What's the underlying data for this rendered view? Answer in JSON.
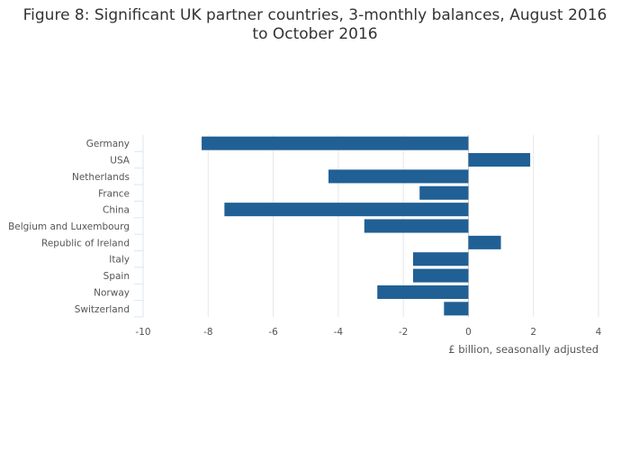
{
  "chart_data": {
    "type": "bar",
    "orientation": "horizontal",
    "title_line1": "Figure 8: Significant UK partner countries, 3-monthly balances, August 2016",
    "title_line2": "to October 2016",
    "xlabel": "£ billion, seasonally adjusted",
    "ylabel": "",
    "xlim": [
      -10,
      4
    ],
    "xticks": [
      -10,
      -8,
      -6,
      -4,
      -2,
      0,
      2,
      4
    ],
    "grid": true,
    "bar_color": "#206095",
    "categories": [
      "Germany",
      "USA",
      "Netherlands",
      "France",
      "China",
      "Belgium and Luxembourg",
      "Republic of Ireland",
      "Italy",
      "Spain",
      "Norway",
      "Switzerland"
    ],
    "values": [
      -8.2,
      1.9,
      -4.3,
      -1.5,
      -7.5,
      -3.2,
      1.0,
      -1.7,
      -1.7,
      -2.8,
      -0.75
    ]
  }
}
